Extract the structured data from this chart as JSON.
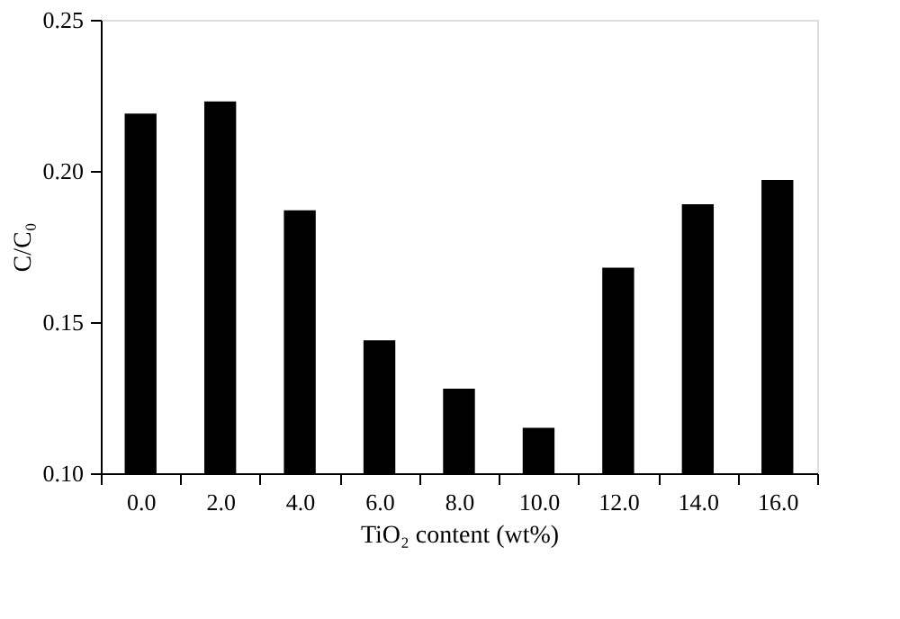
{
  "chart_data": {
    "type": "bar",
    "xlabel": "TiO₂ content (wt%)",
    "ylabel": "C/C₀",
    "categories": [
      "0.0",
      "2.0",
      "4.0",
      "6.0",
      "8.0",
      "10.0",
      "12.0",
      "14.0",
      "16.0"
    ],
    "values": [
      0.219,
      0.223,
      0.187,
      0.144,
      0.128,
      0.115,
      0.168,
      0.189,
      0.197
    ],
    "color": "#000000",
    "ylim": [
      0.1,
      0.25
    ],
    "yticks": [
      {
        "value": 0.1,
        "label": "0.10"
      },
      {
        "value": 0.15,
        "label": "0.15"
      },
      {
        "value": 0.2,
        "label": "0.20"
      },
      {
        "value": 0.25,
        "label": "0.25"
      }
    ],
    "grid": false
  }
}
